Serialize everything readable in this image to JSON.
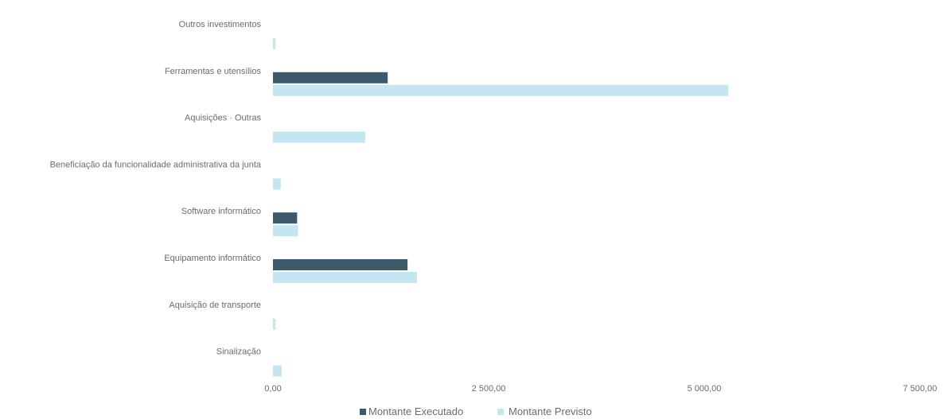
{
  "chart_data": {
    "type": "bar",
    "orientation": "horizontal",
    "categories": [
      "Outros investimentos",
      "Ferramentas e utensílios",
      "Aquisições · Outras",
      "Beneficiação da funcionalidade administrativa da junta",
      "Software informático",
      "Equipamento informático",
      "Aquisição de transporte",
      "Sinalização"
    ],
    "series": [
      {
        "name": "Montante Executado",
        "color": "#3d5a6c",
        "values": [
          0,
          1330,
          0,
          0,
          280,
          1560,
          0,
          0
        ]
      },
      {
        "name": "Montante Previsto",
        "color": "#c3e6f2",
        "values": [
          30,
          5280,
          1070,
          90,
          290,
          1670,
          30,
          100
        ]
      }
    ],
    "xlim": [
      0,
      7500
    ],
    "x_ticks": [
      "0,00",
      "2 500,00",
      "5 000,00",
      "7 500,00"
    ],
    "x_tick_values": [
      0,
      2500,
      5000,
      7500
    ],
    "grid": false,
    "legend_position": "bottom-center"
  }
}
